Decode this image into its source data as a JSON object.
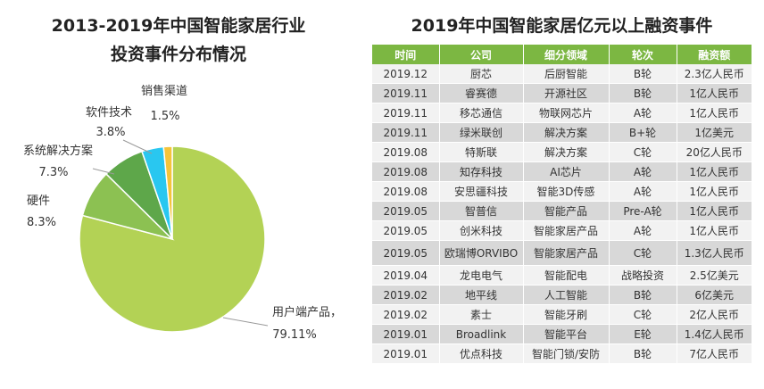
{
  "chart_data": [
    {
      "type": "pie",
      "title": "2013-2019年中国智能家居行业投资事件分布情况",
      "title_lines": [
        "2013-2019年中国智能家居行业",
        "投资事件分布情况"
      ],
      "slices": [
        {
          "name": "用户端产品，",
          "value_label": "79.11%",
          "value": 79.11,
          "color": "#b3d255"
        },
        {
          "name": "硬件",
          "value_label": "8.3%",
          "value": 8.3,
          "color": "#8cc152"
        },
        {
          "name": "系统解决方案",
          "value_label": "7.3%",
          "value": 7.3,
          "color": "#5ea74a"
        },
        {
          "name": "软件技术",
          "value_label": "3.8%",
          "value": 3.8,
          "color": "#29c7f0"
        },
        {
          "name": "销售渠道",
          "value_label": "1.5%",
          "value": 1.5,
          "color": "#f4c43a"
        }
      ]
    },
    {
      "type": "table",
      "title": "2019年中国智能家居亿元以上融资事件",
      "columns": [
        "时间",
        "公司",
        "细分领域",
        "轮次",
        "融资额"
      ],
      "rows": [
        [
          "2019.12",
          "厨芯",
          "后厨智能",
          "B轮",
          "2.3亿人民币"
        ],
        [
          "2019.11",
          "睿赛德",
          "开源社区",
          "B轮",
          "1亿人民币"
        ],
        [
          "2019.11",
          "移芯通信",
          "物联网芯片",
          "A轮",
          "1亿人民币"
        ],
        [
          "2019.11",
          "绿米联创",
          "解决方案",
          "B+轮",
          "1亿美元"
        ],
        [
          "2019.08",
          "特斯联",
          "解决方案",
          "C轮",
          "20亿人民币"
        ],
        [
          "2019.08",
          "知存科技",
          "AI芯片",
          "A轮",
          "1亿人民币"
        ],
        [
          "2019.08",
          "安思疆科技",
          "智能3D传感",
          "A轮",
          "1亿人民币"
        ],
        [
          "2019.05",
          "智普信",
          "智能产品",
          "Pre-A轮",
          "1亿人民币"
        ],
        [
          "2019.05",
          "创米科技",
          "智能家居产品",
          "A轮",
          "1亿人民币"
        ],
        [
          "2019.05",
          "欧瑞博ORVIBO",
          "智能家居产品",
          "C轮",
          "1.3亿人民币"
        ],
        [
          "2019.04",
          "龙电电气",
          "智能配电",
          "战略投资",
          "2.5亿美元"
        ],
        [
          "2019.02",
          "地平线",
          "人工智能",
          "B轮",
          "6亿美元"
        ],
        [
          "2019.02",
          "素士",
          "智能牙刷",
          "C轮",
          "2亿人民币"
        ],
        [
          "2019.01",
          "Broadlink",
          "智能平台",
          "E轮",
          "1.4亿人民币"
        ],
        [
          "2019.01",
          "优点科技",
          "智能门锁/安防",
          "B轮",
          "7亿人民币"
        ]
      ]
    }
  ]
}
